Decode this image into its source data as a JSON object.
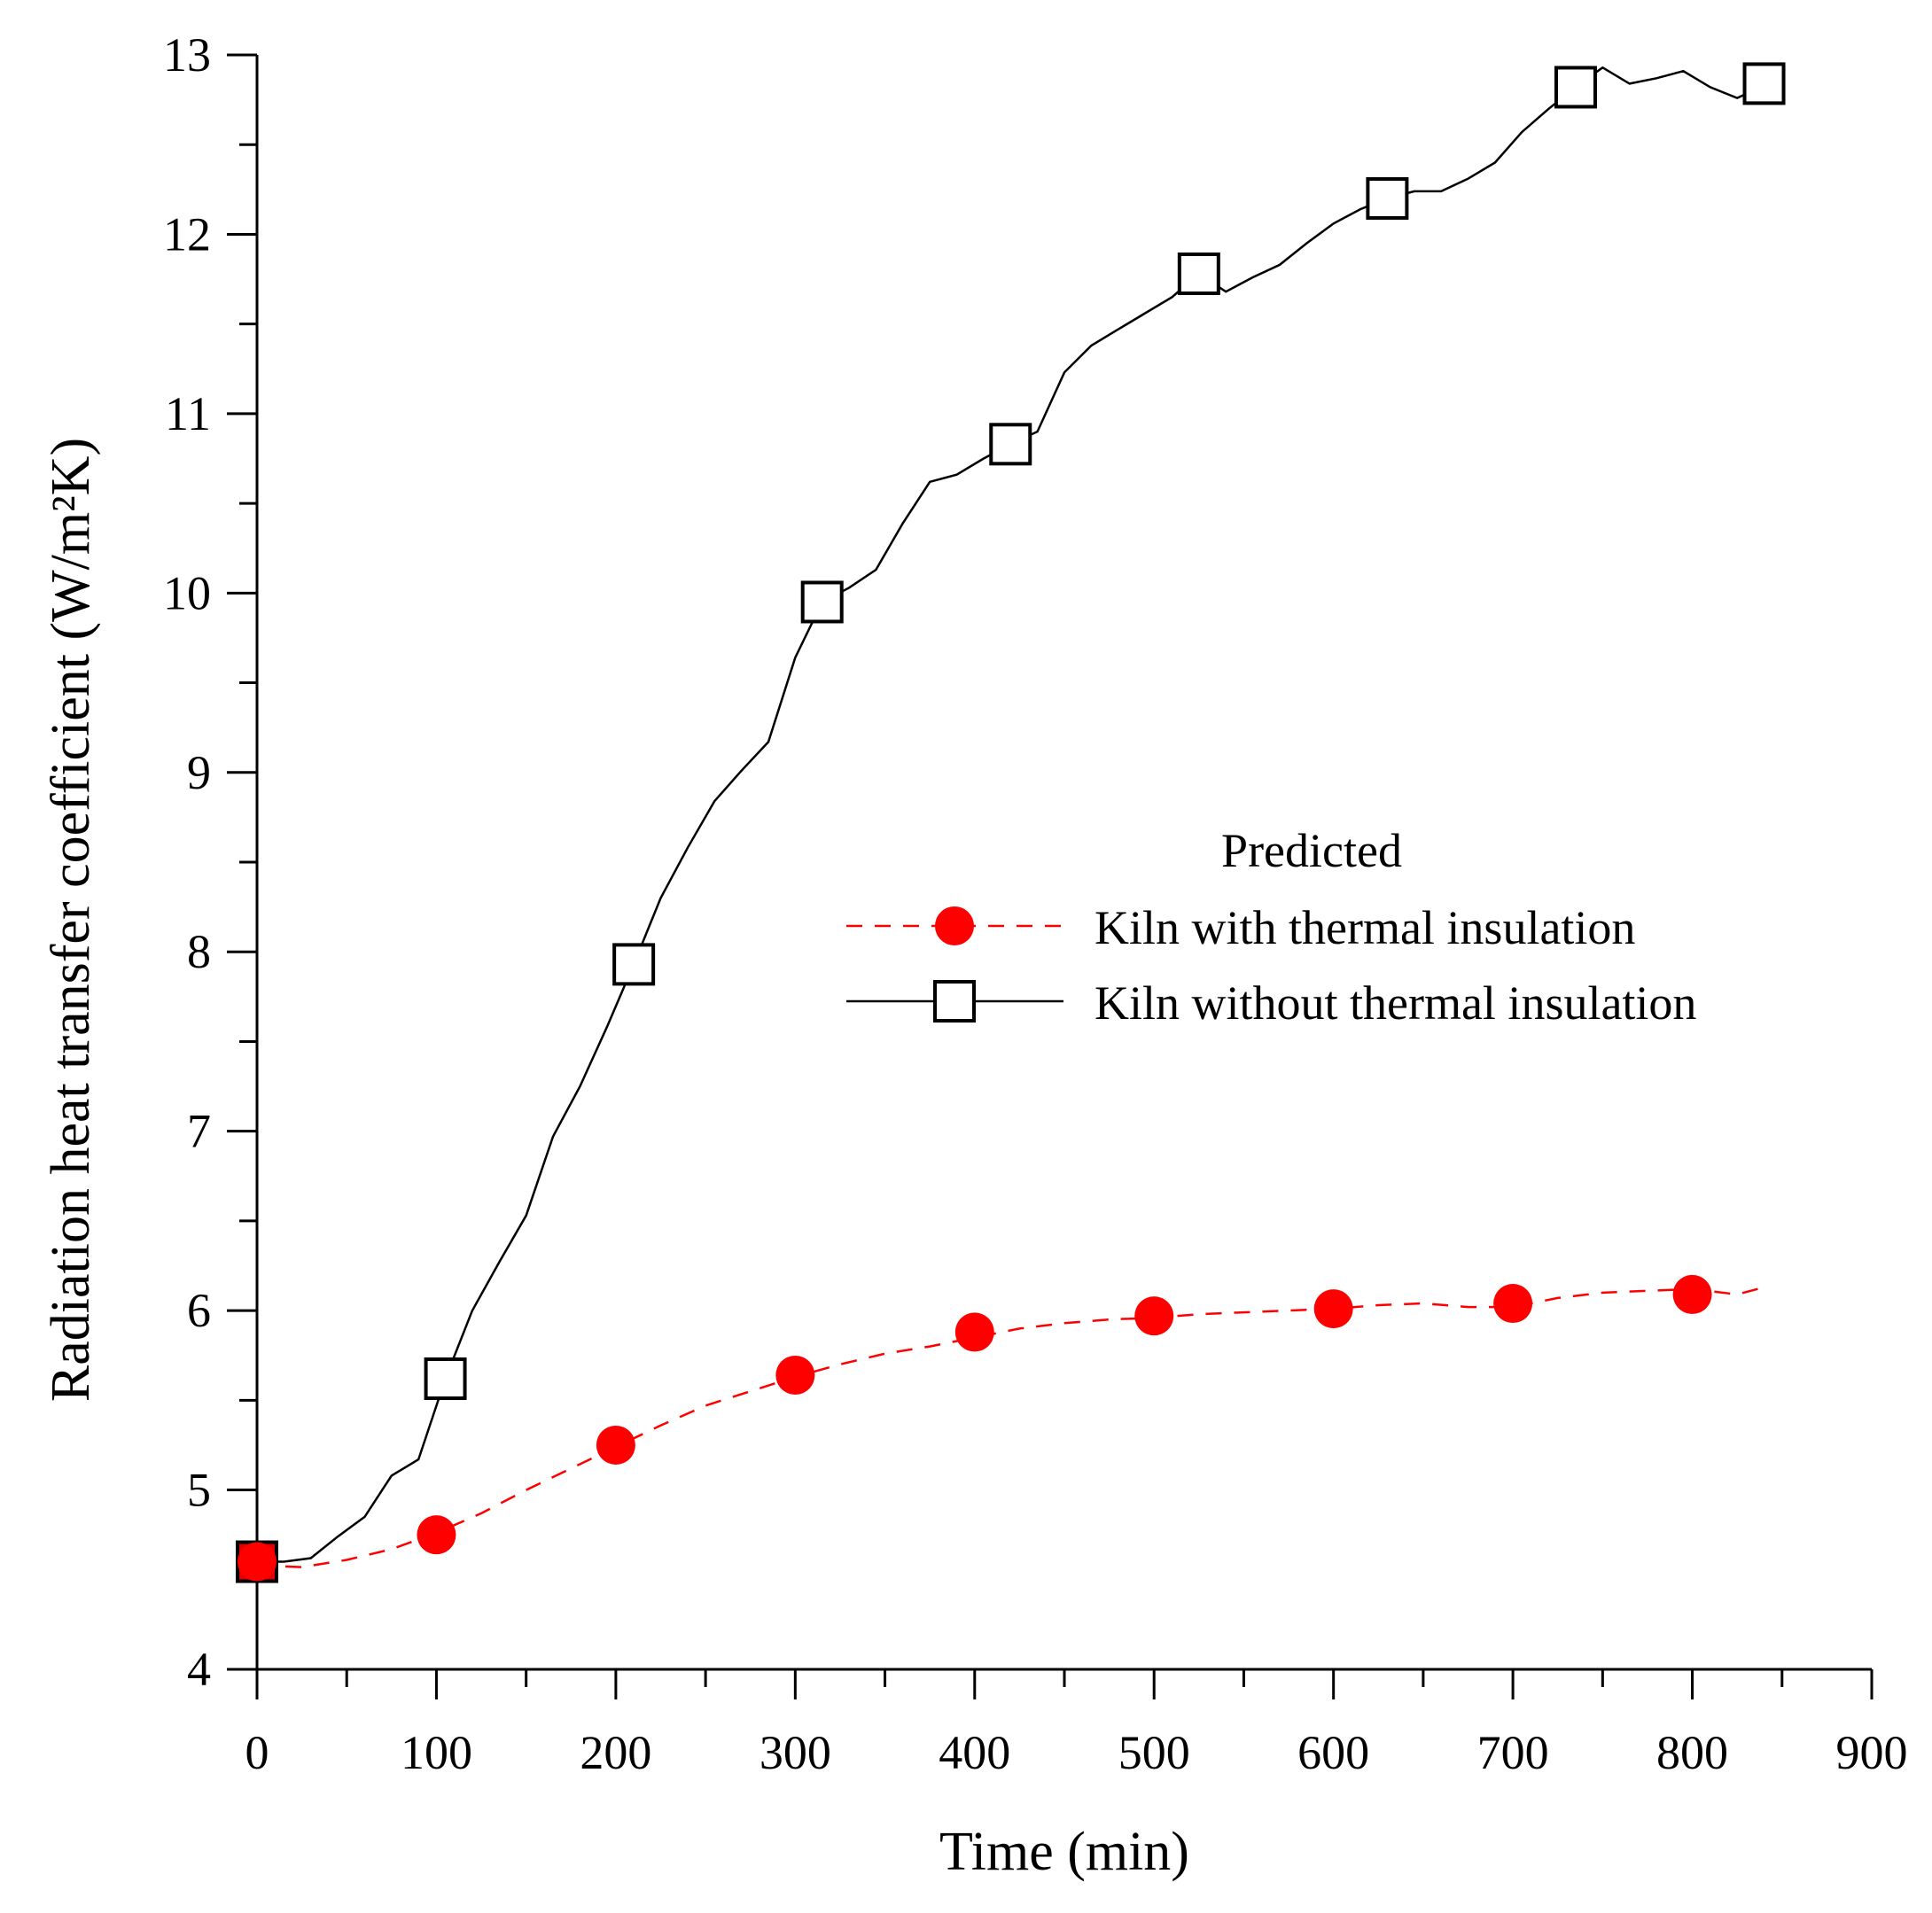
{
  "chart_data": {
    "type": "line",
    "title": "",
    "xlabel": "Time (min)",
    "ylabel": "Radiation heat transfer coefficient (W/m²K)",
    "xlim": [
      0,
      900
    ],
    "ylim": [
      4,
      13
    ],
    "x_ticks": [
      "0",
      "100",
      "200",
      "300",
      "400",
      "500",
      "600",
      "700",
      "800",
      "900"
    ],
    "y_ticks": [
      "4",
      "5",
      "6",
      "7",
      "8",
      "9",
      "10",
      "11",
      "12",
      "13"
    ],
    "legend": {
      "title": "Predicted",
      "placement": "right-center"
    },
    "series": [
      {
        "name": "Kiln with thermal insulation",
        "style": "dashed",
        "marker": "filled-circle",
        "color": "#ff0000",
        "line": {
          "x": [
            0,
            25,
            50,
            75,
            100,
            125,
            150,
            175,
            200,
            225,
            250,
            275,
            300,
            325,
            350,
            375,
            400,
            425,
            450,
            475,
            500,
            525,
            550,
            575,
            600,
            625,
            650,
            675,
            700,
            725,
            750,
            775,
            800,
            825,
            840
          ],
          "y": [
            4.58,
            4.57,
            4.61,
            4.67,
            4.76,
            4.87,
            5.0,
            5.12,
            5.24,
            5.36,
            5.47,
            5.55,
            5.63,
            5.7,
            5.76,
            5.8,
            5.85,
            5.9,
            5.93,
            5.95,
            5.96,
            5.98,
            5.99,
            6.0,
            6.01,
            6.03,
            6.04,
            6.02,
            6.02,
            6.07,
            6.1,
            6.11,
            6.12,
            6.09,
            6.13
          ]
        },
        "markers": {
          "x": [
            0,
            100,
            200,
            300,
            400,
            500,
            600,
            700,
            800
          ],
          "y": [
            4.6,
            4.75,
            5.25,
            5.64,
            5.88,
            5.97,
            6.01,
            6.04,
            6.09
          ]
        }
      },
      {
        "name": "Kiln without thermal insulation",
        "style": "solid",
        "marker": "open-square",
        "color": "#000000",
        "line": {
          "x": [
            0,
            15,
            30,
            45,
            60,
            75,
            90,
            105,
            120,
            135,
            150,
            165,
            180,
            195,
            210,
            225,
            240,
            255,
            270,
            285,
            300,
            315,
            330,
            345,
            360,
            375,
            390,
            405,
            420,
            435,
            450,
            465,
            480,
            495,
            510,
            525,
            540,
            555,
            570,
            585,
            600,
            615,
            630,
            645,
            660,
            675,
            690,
            705,
            720,
            735,
            750,
            765,
            780,
            795,
            810,
            825,
            840
          ],
          "y": [
            4.6,
            4.6,
            4.62,
            4.74,
            4.85,
            5.08,
            5.17,
            5.62,
            6.0,
            6.27,
            6.53,
            6.97,
            7.25,
            7.58,
            7.93,
            8.3,
            8.58,
            8.84,
            9.01,
            9.17,
            9.64,
            9.95,
            10.03,
            10.13,
            10.39,
            10.62,
            10.66,
            10.75,
            10.83,
            10.9,
            11.23,
            11.38,
            11.47,
            11.56,
            11.65,
            11.78,
            11.68,
            11.76,
            11.83,
            11.95,
            12.06,
            12.14,
            12.2,
            12.24,
            12.24,
            12.31,
            12.4,
            12.57,
            12.7,
            12.82,
            12.93,
            12.84,
            12.87,
            12.91,
            12.82,
            12.76,
            12.83
          ]
        },
        "markers": {
          "x": [
            0,
            105,
            210,
            315,
            420,
            525,
            630,
            735,
            840
          ],
          "y": [
            4.6,
            5.62,
            7.93,
            9.95,
            10.83,
            11.78,
            12.2,
            12.82,
            12.84
          ]
        }
      }
    ]
  }
}
